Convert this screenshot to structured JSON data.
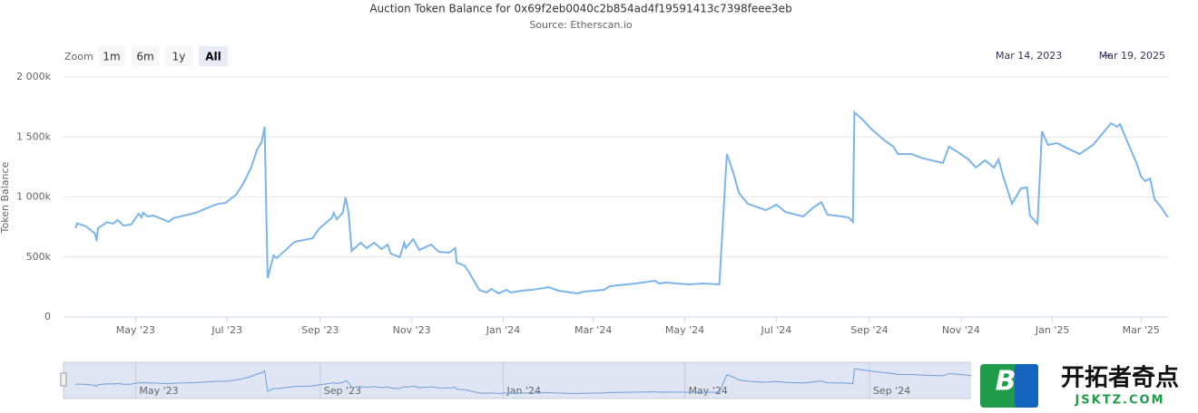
{
  "chart_data": {
    "type": "line",
    "title": "Auction Token Balance for 0x69f2eb0040c2b854ad4f19591413c7398feee3eb",
    "subtitle": "Source: Etherscan.io",
    "y_label": "Token Balance",
    "zoom_label": "Zoom",
    "zoom_buttons": [
      "1m",
      "6m",
      "1y",
      "All"
    ],
    "zoom_selected": 3,
    "range_start": "Mar 14, 2023",
    "range_separator": "→",
    "range_end": "Mar 19, 2025",
    "color": "#7cb5ec",
    "grid": true,
    "xlim": [
      "2023-03-14",
      "2025-03-19"
    ],
    "ylim": [
      0,
      2000000
    ],
    "yticks": [
      0,
      {
        "value": 500000,
        "label": "500k"
      },
      {
        "value": 1000000,
        "label": "1 000k"
      },
      {
        "value": 1500000,
        "label": "1 500k"
      },
      {
        "value": 2000000,
        "label": "2 000k"
      }
    ],
    "xticks": [
      {
        "value": "2023-05-01",
        "label": "May '23"
      },
      {
        "value": "2023-07-01",
        "label": "Jul '23"
      },
      {
        "value": "2023-09-01",
        "label": "Sep '23"
      },
      {
        "value": "2023-11-01",
        "label": "Nov '23"
      },
      {
        "value": "2024-01-01",
        "label": "Jan '24"
      },
      {
        "value": "2024-03-01",
        "label": "Mar '24"
      },
      {
        "value": "2024-05-01",
        "label": "May '24"
      },
      {
        "value": "2024-07-01",
        "label": "Jul '24"
      },
      {
        "value": "2024-09-01",
        "label": "Sep '24"
      },
      {
        "value": "2024-11-01",
        "label": "Nov '24"
      },
      {
        "value": "2025-01-01",
        "label": "Jan '25"
      },
      {
        "value": "2025-03-01",
        "label": "Mar '25"
      }
    ],
    "navigator_xticks": [
      {
        "value": "2023-05-01",
        "label": "May '23"
      },
      {
        "value": "2023-09-01",
        "label": "Sep '23"
      },
      {
        "value": "2024-01-01",
        "label": "Jan '24"
      },
      {
        "value": "2024-05-01",
        "label": "May '24"
      },
      {
        "value": "2024-09-01",
        "label": "Sep '24"
      }
    ],
    "x": [
      "2023-03-22",
      "2023-03-23",
      "2023-03-29",
      "2023-04-04",
      "2023-04-05",
      "2023-04-06",
      "2023-04-12",
      "2023-04-16",
      "2023-04-19",
      "2023-04-23",
      "2023-04-28",
      "2023-05-01",
      "2023-05-03",
      "2023-05-05",
      "2023-05-06",
      "2023-05-09",
      "2023-05-13",
      "2023-05-19",
      "2023-05-23",
      "2023-05-26",
      "2023-06-10",
      "2023-06-20",
      "2023-06-25",
      "2023-06-30",
      "2023-07-07",
      "2023-07-12",
      "2023-07-17",
      "2023-07-21",
      "2023-07-24",
      "2023-07-26",
      "2023-07-28",
      "2023-08-01",
      "2023-08-03",
      "2023-08-15",
      "2023-08-27",
      "2023-08-31",
      "2023-09-09",
      "2023-09-10",
      "2023-09-12",
      "2023-09-16",
      "2023-09-18",
      "2023-09-20",
      "2023-09-22",
      "2023-09-28",
      "2023-10-02",
      "2023-10-07",
      "2023-10-12",
      "2023-10-16",
      "2023-10-18",
      "2023-10-24",
      "2023-10-27",
      "2023-10-28",
      "2023-11-02",
      "2023-11-06",
      "2023-11-14",
      "2023-11-19",
      "2023-11-26",
      "2023-11-30",
      "2023-12-01",
      "2023-12-06",
      "2023-12-09",
      "2023-12-16",
      "2023-12-21",
      "2023-12-24",
      "2023-12-29",
      "2024-01-03",
      "2024-01-06",
      "2024-01-13",
      "2024-01-20",
      "2024-01-28",
      "2024-01-31",
      "2024-02-07",
      "2024-02-19",
      "2024-02-24",
      "2024-03-08",
      "2024-03-12",
      "2024-03-29",
      "2024-04-11",
      "2024-04-14",
      "2024-04-18",
      "2024-05-04",
      "2024-05-13",
      "2024-05-24",
      "2024-05-29",
      "2024-06-02",
      "2024-06-06",
      "2024-06-12",
      "2024-06-19",
      "2024-06-24",
      "2024-07-01",
      "2024-07-07",
      "2024-07-19",
      "2024-07-25",
      "2024-07-31",
      "2024-08-04",
      "2024-08-09",
      "2024-08-18",
      "2024-08-21",
      "2024-08-22",
      "2024-08-28",
      "2024-09-02",
      "2024-09-11",
      "2024-09-17",
      "2024-09-20",
      "2024-09-29",
      "2024-10-07",
      "2024-10-20",
      "2024-10-24",
      "2024-10-30",
      "2024-11-06",
      "2024-11-11",
      "2024-11-17",
      "2024-11-23",
      "2024-11-26",
      "2024-11-29",
      "2024-12-05",
      "2024-12-11",
      "2024-12-15",
      "2024-12-17",
      "2024-12-22",
      "2024-12-25",
      "2024-12-29",
      "2025-01-04",
      "2025-01-10",
      "2025-01-19",
      "2025-01-28",
      "2025-02-03",
      "2025-02-09",
      "2025-02-13",
      "2025-02-15",
      "2025-02-20",
      "2025-02-26",
      "2025-03-01",
      "2025-03-04",
      "2025-03-07",
      "2025-03-10",
      "2025-03-14",
      "2025-03-19"
    ],
    "values": [
      740000,
      780000,
      755000,
      695000,
      634000,
      740000,
      790000,
      777000,
      808000,
      762000,
      770000,
      823000,
      860000,
      830000,
      868000,
      838000,
      845000,
      815000,
      792000,
      823000,
      868000,
      920000,
      943000,
      951000,
      1019000,
      1117000,
      1245000,
      1396000,
      1457000,
      1585000,
      325000,
      513000,
      490000,
      626000,
      657000,
      732000,
      830000,
      868000,
      815000,
      868000,
      996000,
      860000,
      551000,
      619000,
      574000,
      619000,
      566000,
      604000,
      528000,
      498000,
      619000,
      574000,
      649000,
      558000,
      604000,
      543000,
      536000,
      574000,
      453000,
      430000,
      377000,
      226000,
      204000,
      234000,
      196000,
      226000,
      204000,
      219000,
      226000,
      241000,
      249000,
      219000,
      196000,
      211000,
      226000,
      257000,
      279000,
      302000,
      279000,
      287000,
      272000,
      279000,
      272000,
      1358000,
      1215000,
      1034000,
      943000,
      913000,
      890000,
      936000,
      875000,
      838000,
      906000,
      958000,
      853000,
      845000,
      830000,
      792000,
      1706000,
      1638000,
      1570000,
      1472000,
      1419000,
      1358000,
      1358000,
      1321000,
      1283000,
      1419000,
      1374000,
      1313000,
      1245000,
      1306000,
      1245000,
      1313000,
      1177000,
      943000,
      1072000,
      1080000,
      845000,
      777000,
      1547000,
      1434000,
      1449000,
      1411000,
      1358000,
      1434000,
      1524000,
      1615000,
      1585000,
      1608000,
      1457000,
      1283000,
      1170000,
      1132000,
      1155000,
      981000,
      921000,
      830000
    ],
    "watermark": {
      "logo": "B",
      "text": "开拓者奇点",
      "url": "JSKTZ.COM"
    }
  }
}
